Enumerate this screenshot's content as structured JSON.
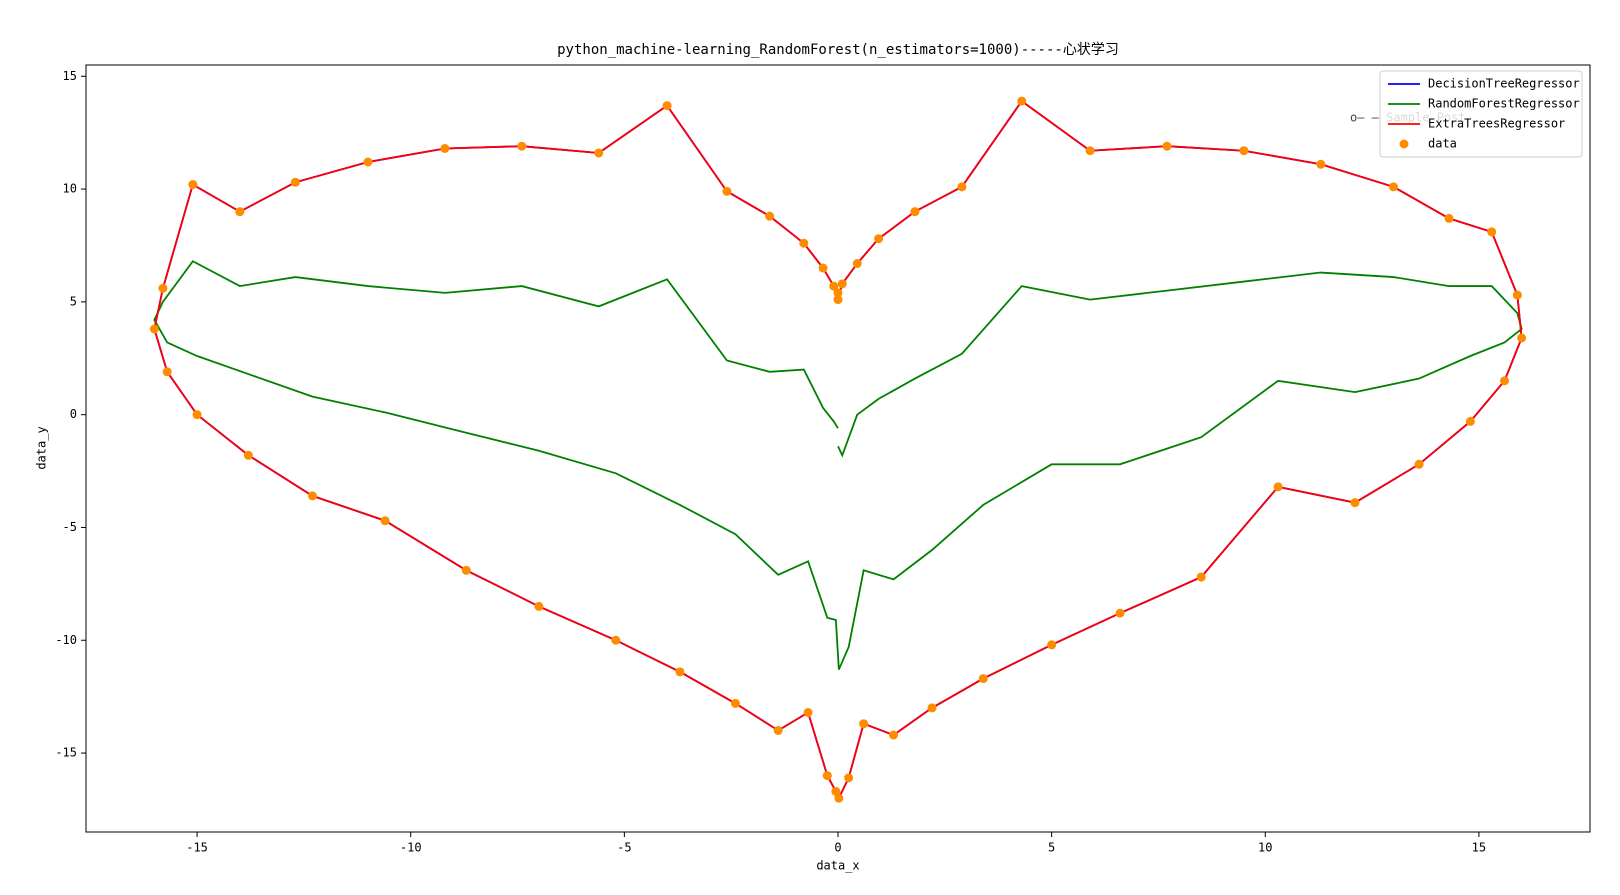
{
  "chart_data": {
    "type": "line",
    "title": "python_machine-learning_RandomForest(n_estimators=1000)-----心状学习",
    "x_label": "data_x",
    "y_label": "data_y",
    "annotation": "o— — Sample Post",
    "xlim": [
      -17.6,
      17.6
    ],
    "ylim": [
      -18.5,
      15.5
    ],
    "xticks": [
      -15,
      -10,
      -5,
      0,
      5,
      10,
      15
    ],
    "yticks": [
      -15,
      -10,
      -5,
      0,
      5,
      10,
      15
    ],
    "legend": "upper right",
    "x": [
      0.0,
      0.1,
      0.45,
      0.95,
      1.8,
      2.9,
      4.3,
      5.9,
      7.7,
      9.5,
      11.3,
      13.0,
      14.3,
      15.3,
      15.9,
      16.0,
      15.6,
      14.8,
      13.6,
      12.1,
      10.3,
      8.5,
      6.6,
      5.0,
      3.4,
      2.2,
      1.3,
      0.6,
      0.25,
      0.02,
      -0.05,
      -0.25,
      -0.7,
      -1.4,
      -2.4,
      -3.7,
      -5.2,
      -7.0,
      -8.7,
      -10.6,
      -12.3,
      -13.8,
      -15.0,
      -15.7,
      -16.0,
      -15.8,
      -15.1,
      -14.0,
      -12.7,
      -11.0,
      -9.2,
      -7.4,
      -5.6,
      -4.0,
      -2.6,
      -1.6,
      -0.8,
      -0.35,
      -0.1,
      0.0
    ],
    "series": [
      {
        "name": "DecisionTreeRegressor",
        "color": "#0000ff",
        "kind": "line",
        "values": [
          5.1,
          5.8,
          6.7,
          7.8,
          9.0,
          10.1,
          13.9,
          11.7,
          11.9,
          11.7,
          11.1,
          10.1,
          8.7,
          8.1,
          5.3,
          3.4,
          1.5,
          -0.3,
          -2.2,
          -3.9,
          -3.2,
          -7.2,
          -8.8,
          -10.2,
          -11.7,
          -13.0,
          -14.2,
          -13.7,
          -16.1,
          -17.0,
          -16.7,
          -16.0,
          -13.2,
          -14.0,
          -12.8,
          -11.4,
          -10.0,
          -8.5,
          -6.9,
          -4.7,
          -3.6,
          -1.8,
          0.0,
          1.9,
          3.8,
          5.6,
          10.2,
          9.0,
          10.3,
          11.2,
          11.8,
          11.9,
          11.6,
          13.7,
          9.9,
          8.8,
          7.6,
          6.5,
          5.7,
          5.4
        ]
      },
      {
        "name": "RandomForestRegressor",
        "color": "#008000",
        "kind": "line",
        "values": [
          -1.4,
          -1.8,
          0.0,
          0.7,
          1.6,
          2.7,
          5.7,
          5.1,
          5.5,
          5.9,
          6.3,
          6.1,
          5.7,
          5.7,
          4.5,
          3.8,
          3.2,
          2.6,
          1.6,
          1.0,
          1.5,
          -1.0,
          -2.2,
          -2.2,
          -4.0,
          -6.0,
          -7.3,
          -6.9,
          -10.3,
          -11.3,
          -9.1,
          -9.0,
          -6.5,
          -7.1,
          -5.3,
          -4.0,
          -2.6,
          -1.6,
          -0.8,
          0.1,
          0.8,
          1.8,
          2.6,
          3.2,
          4.2,
          5.0,
          6.8,
          5.7,
          6.1,
          5.7,
          5.4,
          5.7,
          4.8,
          6.0,
          2.4,
          1.9,
          2.0,
          0.3,
          -0.3,
          -0.6
        ]
      },
      {
        "name": "ExtraTreesRegressor",
        "color": "#ff0000",
        "kind": "line",
        "values": [
          5.1,
          5.8,
          6.7,
          7.8,
          9.0,
          10.1,
          13.9,
          11.7,
          11.9,
          11.7,
          11.1,
          10.1,
          8.7,
          8.1,
          5.3,
          3.4,
          1.5,
          -0.3,
          -2.2,
          -3.9,
          -3.2,
          -7.2,
          -8.8,
          -10.2,
          -11.7,
          -13.0,
          -14.2,
          -13.7,
          -16.1,
          -17.0,
          -16.7,
          -16.0,
          -13.2,
          -14.0,
          -12.8,
          -11.4,
          -10.0,
          -8.5,
          -6.9,
          -4.7,
          -3.6,
          -1.8,
          0.0,
          1.9,
          3.8,
          5.6,
          10.2,
          9.0,
          10.3,
          11.2,
          11.8,
          11.9,
          11.6,
          13.7,
          9.9,
          8.8,
          7.6,
          6.5,
          5.7,
          5.4
        ]
      },
      {
        "name": "data",
        "color": "#ff8c00",
        "kind": "scatter",
        "values": [
          5.1,
          5.8,
          6.7,
          7.8,
          9.0,
          10.1,
          13.9,
          11.7,
          11.9,
          11.7,
          11.1,
          10.1,
          8.7,
          8.1,
          5.3,
          3.4,
          1.5,
          -0.3,
          -2.2,
          -3.9,
          -3.2,
          -7.2,
          -8.8,
          -10.2,
          -11.7,
          -13.0,
          -14.2,
          -13.7,
          -16.1,
          -17.0,
          -16.7,
          -16.0,
          -13.2,
          -14.0,
          -12.8,
          -11.4,
          -10.0,
          -8.5,
          -6.9,
          -4.7,
          -3.6,
          -1.8,
          0.0,
          1.9,
          3.8,
          5.6,
          10.2,
          9.0,
          10.3,
          11.2,
          11.8,
          11.9,
          11.6,
          13.7,
          9.9,
          8.8,
          7.6,
          6.5,
          5.7,
          5.4
        ]
      }
    ]
  }
}
